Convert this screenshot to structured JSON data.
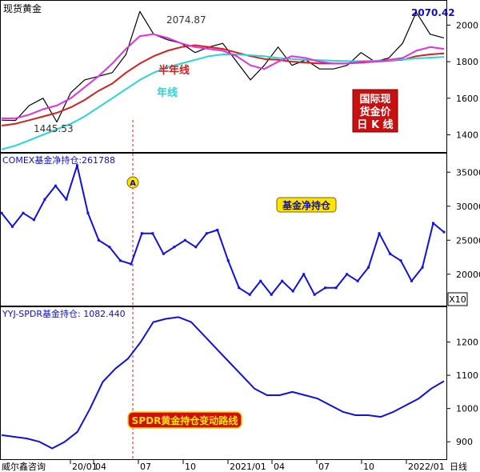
{
  "chart_data": [
    {
      "type": "line",
      "title": "现货黄金",
      "ylim": [
        1310,
        2120
      ],
      "y_ticks": [
        1400,
        1600,
        1800,
        2000
      ],
      "grid": false,
      "series": [
        {
          "name": "",
          "color": "#000000",
          "x": [
            "2019-11",
            "2019-12",
            "2020-01",
            "2020-02",
            "2020-03",
            "2020-03b",
            "2020-04",
            "2020-05",
            "2020-06",
            "2020-07",
            "2020-08a",
            "2020-08b",
            "2020-09",
            "2020-10",
            "2020-11",
            "2020-12",
            "2021-01",
            "2021-02",
            "2021-03",
            "2021-04",
            "2021-05",
            "2021-06",
            "2021-07",
            "2021-08",
            "2021-09",
            "2021-10",
            "2021-11",
            "2021-12",
            "2022-01",
            "2022-02",
            "2022-03a",
            "2022-03b",
            "2022-04"
          ],
          "values": [
            1480,
            1478,
            1560,
            1600,
            1470,
            1630,
            1700,
            1720,
            1740,
            1840,
            2074.87,
            1950,
            1920,
            1900,
            1850,
            1880,
            1900,
            1800,
            1700,
            1780,
            1880,
            1780,
            1810,
            1760,
            1760,
            1780,
            1850,
            1800,
            1820,
            1900,
            2070.42,
            1950,
            1930
          ]
        },
        {
          "name": "半年线",
          "color": "#d42020",
          "values": [
            1450,
            1460,
            1480,
            1500,
            1520,
            1550,
            1590,
            1640,
            1680,
            1740,
            1790,
            1830,
            1860,
            1880,
            1890,
            1880,
            1870,
            1850,
            1830,
            1815,
            1810,
            1800,
            1795,
            1790,
            1790,
            1790,
            1795,
            1800,
            1805,
            1810,
            1830,
            1840,
            1845
          ]
        },
        {
          "name": "年线",
          "color": "#27d6d6",
          "values": [
            1320,
            1340,
            1370,
            1400,
            1430,
            1460,
            1500,
            1550,
            1600,
            1650,
            1700,
            1740,
            1770,
            1790,
            1810,
            1830,
            1840,
            1840,
            1835,
            1830,
            1820,
            1815,
            1810,
            1808,
            1805,
            1803,
            1803,
            1805,
            1808,
            1812,
            1818,
            1822,
            1826
          ]
        },
        {
          "name": "",
          "color": "#e030e0",
          "values": [
            1490,
            1490,
            1510,
            1540,
            1560,
            1600,
            1660,
            1720,
            1790,
            1870,
            1940,
            1950,
            1930,
            1900,
            1880,
            1870,
            1860,
            1830,
            1780,
            1760,
            1800,
            1830,
            1820,
            1800,
            1790,
            1790,
            1800,
            1800,
            1810,
            1820,
            1860,
            1880,
            1870
          ]
        }
      ],
      "annotations": [
        {
          "text": "2074.87",
          "x": "2020-08a",
          "y": 2074.87
        },
        {
          "text": "1445.53",
          "x": "2020-03",
          "y": 1445.53
        },
        {
          "text": "2070.42",
          "x": "2022-03a",
          "y": 2070.42
        }
      ],
      "legend_labels": [
        "半年线",
        "年线"
      ],
      "callout": [
        "国际现",
        "货金价",
        "日 K 线"
      ]
    },
    {
      "type": "line",
      "title": "COMEX基金净持仓:261788",
      "ylim": [
        15500,
        37500
      ],
      "y_ticks": [
        20000,
        25000,
        30000,
        35000
      ],
      "scale_label": "X10",
      "series": [
        {
          "name": "基金净持仓",
          "color": "#1010e0",
          "values": [
            29000,
            27000,
            29000,
            28000,
            31000,
            33000,
            31000,
            36000,
            29000,
            25000,
            24000,
            22000,
            21500,
            26000,
            26000,
            23000,
            24000,
            25000,
            24000,
            26000,
            26500,
            22000,
            18000,
            17000,
            19000,
            17000,
            19000,
            17500,
            20000,
            17000,
            18000,
            18000,
            20000,
            19000,
            21000,
            26000,
            23000,
            22000,
            19000,
            21000,
            27500,
            26200
          ]
        }
      ],
      "badge": "基金净持仓",
      "marker": "A"
    },
    {
      "type": "line",
      "title": "YYJ-SPDR基金持仓: 1082.440",
      "ylim": [
        850,
        1300
      ],
      "y_ticks": [
        900,
        1000,
        1100,
        1200
      ],
      "series": [
        {
          "name": "",
          "color": "#1010e0",
          "values": [
            920,
            915,
            910,
            900,
            880,
            900,
            930,
            1000,
            1080,
            1120,
            1150,
            1200,
            1260,
            1270,
            1275,
            1260,
            1220,
            1180,
            1140,
            1100,
            1060,
            1040,
            1040,
            1050,
            1040,
            1030,
            1010,
            990,
            980,
            980,
            975,
            990,
            1010,
            1030,
            1060,
            1082.44
          ]
        }
      ],
      "badge": "SPDR黄金持仓变动路线"
    }
  ],
  "x_axis": {
    "ticks": [
      "20/01",
      "04",
      "07",
      "10",
      "2021/01",
      "04",
      "07",
      "10",
      "2022/01"
    ],
    "unit": "日线"
  },
  "footer": {
    "source": "威尔鑫咨询"
  }
}
